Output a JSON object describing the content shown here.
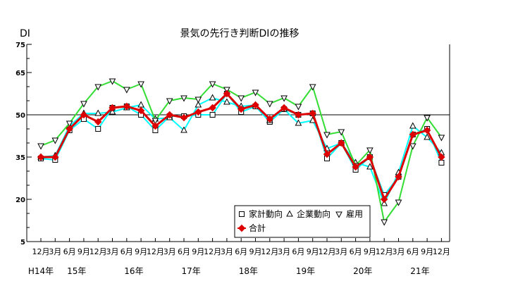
{
  "chart_data": {
    "type": "line",
    "title": "景気の先行き判断DIの推移",
    "ylabel": "DI",
    "xlabel": "",
    "ylim": [
      5,
      75
    ],
    "yticks": [
      5,
      20,
      35,
      50,
      65,
      75
    ],
    "reference_line": 50,
    "categories": [
      "12月",
      "3月",
      "6月",
      "9月",
      "12月",
      "3月",
      "6月",
      "9月",
      "12月",
      "3月",
      "6月",
      "9月",
      "12月",
      "3月",
      "6月",
      "9月",
      "12月",
      "3月",
      "6月",
      "9月",
      "12月",
      "3月",
      "6月",
      "9月",
      "12月",
      "3月",
      "6月",
      "9月",
      "12月"
    ],
    "year_labels": [
      {
        "label": "H14年",
        "index": 0
      },
      {
        "label": "15年",
        "index": 2.5
      },
      {
        "label": "16年",
        "index": 6.5
      },
      {
        "label": "17年",
        "index": 10.5
      },
      {
        "label": "18年",
        "index": 14.5
      },
      {
        "label": "19年",
        "index": 18.5
      },
      {
        "label": "20年",
        "index": 22.5
      },
      {
        "label": "21年",
        "index": 26.5
      }
    ],
    "series": [
      {
        "name": "家計動向",
        "color": "#00ffff",
        "marker": "square",
        "values": [
          34.5,
          34,
          44.5,
          48.5,
          45,
          52.5,
          53,
          50,
          44.5,
          49.5,
          49.5,
          50,
          50,
          57.5,
          51,
          53,
          47.5,
          52,
          50,
          50.5,
          34.5,
          40,
          30.5,
          35,
          21.5,
          28,
          43,
          45,
          33
        ]
      },
      {
        "name": "企業動向",
        "color": "#00ffff",
        "marker": "triangle-up",
        "values": [
          35,
          35.5,
          46,
          50.5,
          50.5,
          51,
          52.5,
          53.5,
          48.5,
          49,
          44.5,
          53.5,
          56,
          54.5,
          53,
          53.5,
          48,
          52,
          47,
          48,
          38,
          40,
          33,
          31.5,
          18.5,
          29.5,
          46,
          42,
          36.5
        ]
      },
      {
        "name": "雇用",
        "color": "#33dd33",
        "marker": "triangle-down",
        "values": [
          39,
          41,
          47,
          54,
          60,
          62,
          59,
          61,
          48,
          55,
          56,
          55.5,
          61,
          59,
          56,
          58,
          54,
          56,
          53,
          60,
          43,
          44,
          32,
          37.5,
          12,
          19,
          39,
          49,
          42
        ]
      },
      {
        "name": "合計",
        "color": "#dd0000",
        "marker": "diamond",
        "values": [
          35,
          35,
          45,
          50,
          47.5,
          52.5,
          53,
          51.5,
          46,
          50,
          49,
          51,
          52.5,
          57.5,
          52,
          53.5,
          48.5,
          52.5,
          50,
          50.5,
          36,
          40,
          31.5,
          35,
          20,
          28,
          43,
          44.5,
          35
        ]
      }
    ],
    "grid": false,
    "legend_position": "bottom-right"
  }
}
